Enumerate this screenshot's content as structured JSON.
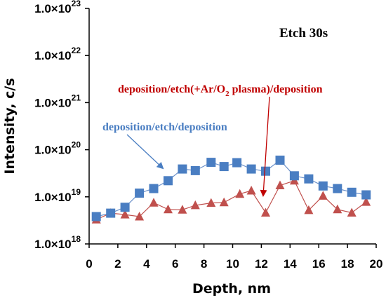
{
  "chart_data": {
    "type": "scatter",
    "title": "",
    "xlabel": "Depth, nm",
    "ylabel": "Intensity, c/s",
    "xlim": [
      0,
      20
    ],
    "ylim_exp": [
      18,
      23
    ],
    "yscale": "log",
    "grid": false,
    "legend": "none",
    "x_ticks": [
      "0",
      "2",
      "4",
      "6",
      "8",
      "10",
      "12",
      "14",
      "16",
      "18",
      "20"
    ],
    "y_ticks": [
      {
        "exp": 23,
        "base": "1.0×10",
        "sup": "23"
      },
      {
        "exp": 22,
        "base": "1.0×10",
        "sup": "22"
      },
      {
        "exp": 21,
        "base": "1.0×10",
        "sup": "21"
      },
      {
        "exp": 20,
        "base": "1.0×10",
        "sup": "20"
      },
      {
        "exp": 19,
        "base": "1.0×10",
        "sup": "19"
      },
      {
        "exp": 18,
        "base": "1.0×10",
        "sup": "18"
      }
    ],
    "series": [
      {
        "marker": "square",
        "color": "#4a7ec2",
        "points": [
          [
            0.5,
            3.8e+18
          ],
          [
            1.5,
            4.5e+18
          ],
          [
            2.5,
            6e+18
          ],
          [
            3.5,
            1.2e+19
          ],
          [
            4.5,
            1.5e+19
          ],
          [
            5.5,
            2.2e+19
          ],
          [
            6.5,
            3.9e+19
          ],
          [
            7.4,
            3.6e+19
          ],
          [
            8.5,
            5.4e+19
          ],
          [
            9.4,
            4.4e+19
          ],
          [
            10.3,
            5.3e+19
          ],
          [
            11.3,
            3.9e+19
          ],
          [
            12.3,
            3.5e+19
          ],
          [
            13.3,
            6e+19
          ],
          [
            14.3,
            2.8e+19
          ],
          [
            15.3,
            2.4e+19
          ],
          [
            16.3,
            1.7e+19
          ],
          [
            17.3,
            1.5e+19
          ],
          [
            18.3,
            1.25e+19
          ],
          [
            19.3,
            1.1e+19
          ]
        ]
      },
      {
        "marker": "triangle",
        "color": "#c0504d",
        "points": [
          [
            0.5,
            3.3e+18
          ],
          [
            1.5,
            4.5e+18
          ],
          [
            2.5,
            4.2e+18
          ],
          [
            3.5,
            3.8e+18
          ],
          [
            4.5,
            7.5e+18
          ],
          [
            5.5,
            5.4e+18
          ],
          [
            6.5,
            5.3e+18
          ],
          [
            7.4,
            6.6e+18
          ],
          [
            8.5,
            7.4e+18
          ],
          [
            9.4,
            7.6e+18
          ],
          [
            10.5,
            1.15e+19
          ],
          [
            11.3,
            1.35e+19
          ],
          [
            12.3,
            4.6e+18
          ],
          [
            13.3,
            1.75e+19
          ],
          [
            14.3,
            2.2e+19
          ],
          [
            15.3,
            5.2e+18
          ],
          [
            16.3,
            1.05e+19
          ],
          [
            17.3,
            5.4e+18
          ],
          [
            18.3,
            4.6e+18
          ],
          [
            19.3,
            7.8e+18
          ]
        ]
      }
    ],
    "annotations": {
      "etch_label": "Etch 30s",
      "blue_label": "deposition/etch/deposition",
      "red_label_pre": "deposition/etch(+Ar/O",
      "red_label_sub": "2",
      "red_label_post": " plasma)/deposition"
    }
  }
}
